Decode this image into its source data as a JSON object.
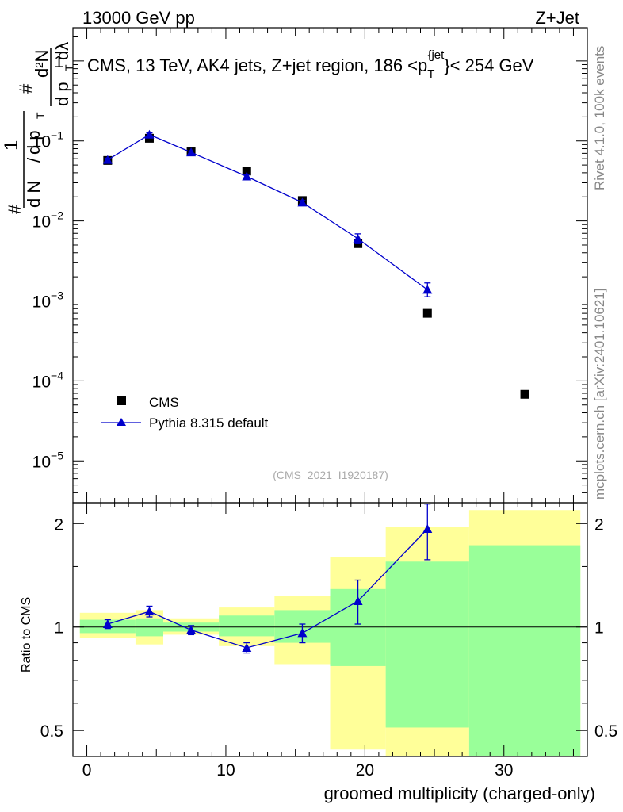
{
  "header": {
    "left": "13000 GeV pp",
    "right": "Z+Jet"
  },
  "side_labels": {
    "rivet": "Rivet 4.1.0,  100k events",
    "mcplots": "mcplots.cern.ch [arXiv:2401.10621]"
  },
  "chart_data": [
    {
      "type": "scatter",
      "panel": "main",
      "title": "CMS, 13 TeV, AK4 jets, Z+jet region, 186 <p_T^{jet}> < 254 GeV",
      "title_parts": {
        "pre": "CMS, 13 TeV, AK4 jets, Z+jet region, 186 <p",
        "sub": "T",
        "sup": "{jet",
        "post": "}< 254 GeV"
      },
      "ylabel": "1/N dN/dp_T d^2N/dp_T dλ",
      "ylabel_parts": {
        "hash": "#",
        "one": "1",
        "dN": "d N",
        "dpT": "d p",
        "T": "T",
        "d2N": "d²N",
        "dlambda": "d p",
        "lam": "dλ"
      },
      "yscale": "log",
      "ylim": [
        3e-06,
        2.6
      ],
      "xlim": [
        -1,
        36
      ],
      "yticks": [
        {
          "v": 1,
          "base": "1",
          "exp": ""
        },
        {
          "v": 0.1,
          "base": "10",
          "exp": "−1"
        },
        {
          "v": 0.01,
          "base": "10",
          "exp": "−2"
        },
        {
          "v": 0.001,
          "base": "10",
          "exp": "−3"
        },
        {
          "v": 0.0001,
          "base": "10",
          "exp": "−4"
        },
        {
          "v": 1e-05,
          "base": "10",
          "exp": "−5"
        }
      ],
      "watermark": "(CMS_2021_I1920187)",
      "legend": [
        {
          "name": "CMS",
          "marker": "square",
          "color": "#000000"
        },
        {
          "name": "Pythia 8.315 default",
          "marker": "triangle",
          "color": "#0000cc"
        }
      ],
      "series": [
        {
          "name": "CMS",
          "x": [
            1.5,
            4.5,
            7.5,
            11.5,
            15.5,
            19.5,
            24.5,
            31.5
          ],
          "y": [
            0.057,
            0.108,
            0.073,
            0.042,
            0.018,
            0.0052,
            0.0007,
            6.8e-05
          ]
        },
        {
          "name": "Pythia 8.315 default",
          "x": [
            1.5,
            4.5,
            7.5,
            11.5,
            15.5,
            19.5,
            24.5
          ],
          "y": [
            0.058,
            0.12,
            0.072,
            0.036,
            0.017,
            0.006,
            0.00138
          ],
          "yerr_up": [
            0.003,
            0.006,
            0.003,
            0.002,
            0.001,
            0.0009,
            0.0003
          ],
          "yerr_down": [
            0.003,
            0.006,
            0.003,
            0.002,
            0.001,
            0.0008,
            0.00025
          ]
        }
      ]
    },
    {
      "type": "scatter",
      "panel": "ratio",
      "ylabel": "Ratio to CMS",
      "xlabel": "groomed multiplicity (charged-only)",
      "yscale": "log",
      "ylim": [
        0.42,
        2.3
      ],
      "xlim": [
        -1,
        36
      ],
      "xticks": [
        0,
        10,
        20,
        30
      ],
      "yticks": [
        {
          "v": 2,
          "label": "2"
        },
        {
          "v": 1,
          "label": "1"
        },
        {
          "v": 0.5,
          "label": "0.5"
        }
      ],
      "bands": [
        {
          "x0": -0.5,
          "x1": 3.5,
          "y_lo": 0.93,
          "y_hi": 1.1,
          "g_lo": 0.96,
          "g_hi": 1.05
        },
        {
          "x0": 3.5,
          "x1": 5.5,
          "y_lo": 0.89,
          "y_hi": 1.12,
          "g_lo": 0.94,
          "g_hi": 1.06
        },
        {
          "x0": 5.5,
          "x1": 9.5,
          "y_lo": 0.95,
          "y_hi": 1.06,
          "g_lo": 0.97,
          "g_hi": 1.03
        },
        {
          "x0": 9.5,
          "x1": 13.5,
          "y_lo": 0.88,
          "y_hi": 1.14,
          "g_lo": 0.94,
          "g_hi": 1.08
        },
        {
          "x0": 13.5,
          "x1": 17.5,
          "y_lo": 0.78,
          "y_hi": 1.23,
          "g_lo": 0.9,
          "g_hi": 1.12
        },
        {
          "x0": 17.5,
          "x1": 21.5,
          "y_lo": 0.44,
          "y_hi": 1.6,
          "g_lo": 0.77,
          "g_hi": 1.29
        },
        {
          "x0": 21.5,
          "x1": 27.5,
          "y_lo": 0.35,
          "y_hi": 1.96,
          "g_lo": 0.51,
          "g_hi": 1.55
        },
        {
          "x0": 27.5,
          "x1": 35.5,
          "y_lo": 0.35,
          "y_hi": 2.19,
          "g_lo": 0.35,
          "g_hi": 1.73
        }
      ],
      "series": [
        {
          "name": "Pythia 8.315 default",
          "x": [
            1.5,
            4.5,
            7.5,
            11.5,
            15.5,
            19.5,
            24.5
          ],
          "y": [
            1.02,
            1.11,
            0.98,
            0.87,
            0.96,
            1.19,
            1.93
          ],
          "yerr_up": [
            0.03,
            0.04,
            0.03,
            0.03,
            0.06,
            0.18,
            0.35
          ],
          "yerr_down": [
            0.03,
            0.04,
            0.03,
            0.03,
            0.06,
            0.17,
            0.36
          ]
        }
      ]
    }
  ]
}
